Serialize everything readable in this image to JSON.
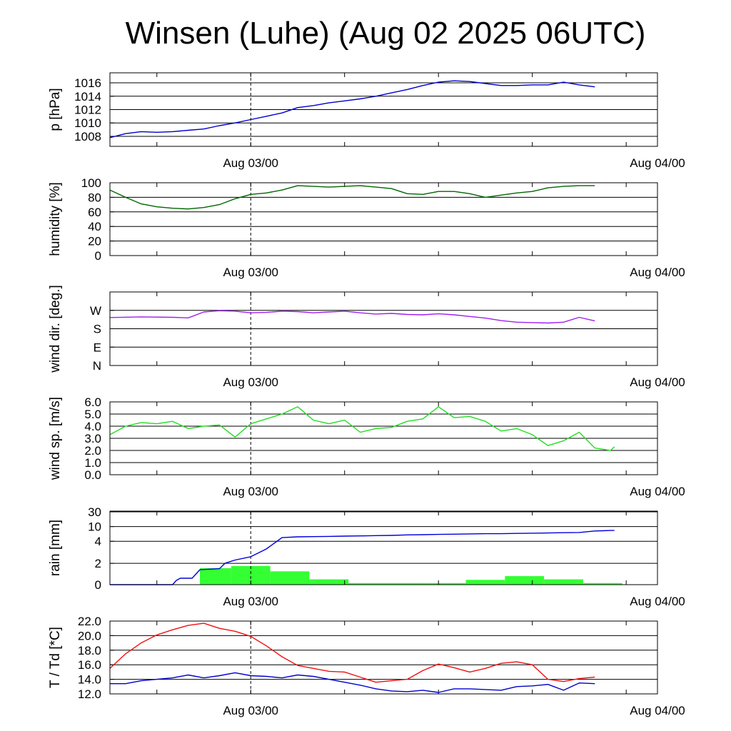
{
  "title": "Winsen (Luhe) (Aug 02 2025 06UTC)",
  "colors": {
    "pressure": "#0000cc",
    "humidity": "#006600",
    "wind_dir": "#a020f0",
    "wind_speed": "#22dd22",
    "rain_total": "#0000dd",
    "rain_bars": "#33ff33",
    "temperature": "#ee1111",
    "dewpoint": "#0000cc"
  },
  "chart_data": [
    {
      "type": "line",
      "id": "pressure",
      "ylabel": "p [hPa]",
      "ylim": [
        1006.5,
        1017.5
      ],
      "yticks": [
        1008,
        1010,
        1012,
        1014,
        1016
      ],
      "ytick_labels": [
        "1008",
        "1010",
        "1012",
        "1014",
        "1016"
      ],
      "xlim_hours": [
        -18,
        52
      ],
      "xtick_labels": [
        "Aug 03/00",
        "Aug 04/00"
      ],
      "series": [
        {
          "values": [
            [
              -18,
              1007.8
            ],
            [
              -16,
              1008.4
            ],
            [
              -14,
              1008.7
            ],
            [
              -12,
              1008.6
            ],
            [
              -10,
              1008.7
            ],
            [
              -8,
              1008.9
            ],
            [
              -6,
              1009.1
            ],
            [
              -4,
              1009.6
            ],
            [
              -2,
              1010.0
            ],
            [
              0,
              1010.5
            ],
            [
              2,
              1011.0
            ],
            [
              4,
              1011.5
            ],
            [
              6,
              1012.3
            ],
            [
              8,
              1012.6
            ],
            [
              10,
              1013.0
            ],
            [
              12,
              1013.3
            ],
            [
              14,
              1013.6
            ],
            [
              16,
              1014.0
            ],
            [
              18,
              1014.5
            ],
            [
              20,
              1015.0
            ],
            [
              22,
              1015.6
            ],
            [
              24,
              1016.1
            ],
            [
              26,
              1016.3
            ],
            [
              28,
              1016.2
            ],
            [
              30,
              1015.9
            ],
            [
              32,
              1015.6
            ],
            [
              34,
              1015.6
            ],
            [
              36,
              1015.7
            ],
            [
              38,
              1015.7
            ],
            [
              40,
              1016.1
            ],
            [
              42,
              1015.7
            ],
            [
              44,
              1015.4
            ]
          ]
        }
      ]
    },
    {
      "type": "line",
      "id": "humidity",
      "ylabel": "humidity [%]",
      "ylim": [
        0,
        100
      ],
      "yticks": [
        0,
        20,
        40,
        60,
        80,
        100
      ],
      "ytick_labels": [
        "0",
        "20",
        "40",
        "60",
        "80",
        "100"
      ],
      "xlim_hours": [
        -18,
        52
      ],
      "xtick_labels": [
        "Aug 03/00",
        "Aug 04/00"
      ],
      "series": [
        {
          "values": [
            [
              -18,
              90
            ],
            [
              -16,
              80
            ],
            [
              -14,
              71
            ],
            [
              -12,
              67
            ],
            [
              -10,
              65
            ],
            [
              -8,
              64
            ],
            [
              -6,
              66
            ],
            [
              -4,
              70
            ],
            [
              -2,
              78
            ],
            [
              0,
              84
            ],
            [
              2,
              86
            ],
            [
              4,
              90
            ],
            [
              6,
              96
            ],
            [
              8,
              95
            ],
            [
              10,
              94
            ],
            [
              12,
              95
            ],
            [
              14,
              96
            ],
            [
              16,
              94
            ],
            [
              18,
              92
            ],
            [
              20,
              85
            ],
            [
              22,
              84
            ],
            [
              24,
              88
            ],
            [
              26,
              88
            ],
            [
              28,
              85
            ],
            [
              30,
              80
            ],
            [
              32,
              83
            ],
            [
              34,
              86
            ],
            [
              36,
              88
            ],
            [
              38,
              93
            ],
            [
              40,
              95
            ],
            [
              42,
              96
            ],
            [
              44,
              96
            ]
          ]
        }
      ]
    },
    {
      "type": "line",
      "id": "wind_dir",
      "ylabel": "wind dir. [deg.]",
      "ylim": [
        0,
        360
      ],
      "yticks": [
        0,
        90,
        180,
        270
      ],
      "ytick_labels": [
        "N",
        "E",
        "S",
        "W"
      ],
      "xlim_hours": [
        -18,
        52
      ],
      "xtick_labels": [
        "Aug 03/00",
        "Aug 04/00"
      ],
      "series": [
        {
          "values": [
            [
              -18,
              235
            ],
            [
              -14,
              238
            ],
            [
              -10,
              236
            ],
            [
              -8,
              233
            ],
            [
              -6,
              262
            ],
            [
              -4,
              268
            ],
            [
              -2,
              266
            ],
            [
              0,
              258
            ],
            [
              2,
              260
            ],
            [
              4,
              266
            ],
            [
              6,
              264
            ],
            [
              8,
              258
            ],
            [
              10,
              262
            ],
            [
              12,
              266
            ],
            [
              14,
              258
            ],
            [
              16,
              252
            ],
            [
              18,
              255
            ],
            [
              20,
              250
            ],
            [
              22,
              248
            ],
            [
              24,
              253
            ],
            [
              26,
              248
            ],
            [
              28,
              240
            ],
            [
              30,
              232
            ],
            [
              32,
              220
            ],
            [
              34,
              212
            ],
            [
              36,
              210
            ],
            [
              38,
              208
            ],
            [
              40,
              212
            ],
            [
              42,
              236
            ],
            [
              44,
              218
            ]
          ]
        }
      ]
    },
    {
      "type": "line",
      "id": "wind_speed",
      "ylabel": "wind sp. [m/s]",
      "ylim": [
        0,
        6.0
      ],
      "yticks": [
        0,
        1,
        2,
        3,
        4,
        5,
        6
      ],
      "ytick_labels": [
        "0.0",
        "1.0",
        "2.0",
        "3.0",
        "4.0",
        "5.0",
        "6.0"
      ],
      "xlim_hours": [
        -18,
        52
      ],
      "xtick_labels": [
        "Aug 03/00",
        "Aug 04/00"
      ],
      "series": [
        {
          "values": [
            [
              -18,
              3.3
            ],
            [
              -16,
              4.0
            ],
            [
              -14,
              4.3
            ],
            [
              -12,
              4.2
            ],
            [
              -10,
              4.4
            ],
            [
              -8,
              3.8
            ],
            [
              -6,
              4.0
            ],
            [
              -4,
              4.1
            ],
            [
              -2,
              3.1
            ],
            [
              0,
              4.2
            ],
            [
              2,
              4.6
            ],
            [
              4,
              5.0
            ],
            [
              6,
              5.6
            ],
            [
              8,
              4.5
            ],
            [
              10,
              4.2
            ],
            [
              12,
              4.5
            ],
            [
              14,
              3.5
            ],
            [
              16,
              3.8
            ],
            [
              18,
              3.9
            ],
            [
              20,
              4.4
            ],
            [
              22,
              4.6
            ],
            [
              24,
              5.6
            ],
            [
              26,
              4.7
            ],
            [
              28,
              4.8
            ],
            [
              30,
              4.4
            ],
            [
              32,
              3.6
            ],
            [
              34,
              3.8
            ],
            [
              36,
              3.3
            ],
            [
              38,
              2.4
            ],
            [
              40,
              2.8
            ],
            [
              42,
              3.5
            ],
            [
              44,
              2.2
            ],
            [
              46,
              2.0
            ],
            [
              46.5,
              2.3
            ]
          ]
        }
      ]
    },
    {
      "type": "bar",
      "id": "rain",
      "ylabel": "rain [mm]",
      "ylim": [
        0,
        30
      ],
      "yticks": [
        0,
        2,
        4,
        10,
        30
      ],
      "ytick_labels": [
        "0",
        "2",
        "4",
        "10",
        "30"
      ],
      "xlim_hours": [
        -18,
        52
      ],
      "xtick_labels": [
        "Aug 03/00",
        "Aug 04/00"
      ],
      "bars": [
        {
          "start": -6.5,
          "end": -2.5,
          "value": 1.55
        },
        {
          "start": -2.5,
          "end": 2.5,
          "value": 1.75
        },
        {
          "start": 2.5,
          "end": 7.5,
          "value": 1.25
        },
        {
          "start": 7.5,
          "end": 12.5,
          "value": 0.5
        },
        {
          "start": 12.5,
          "end": 17.5,
          "value": 0.15
        },
        {
          "start": 17.5,
          "end": 22.5,
          "value": 0.15
        },
        {
          "start": 22.5,
          "end": 27.5,
          "value": 0.15
        },
        {
          "start": 27.5,
          "end": 32.5,
          "value": 0.45
        },
        {
          "start": 32.5,
          "end": 37.5,
          "value": 0.8
        },
        {
          "start": 37.5,
          "end": 42.5,
          "value": 0.5
        },
        {
          "start": 42.5,
          "end": 47.5,
          "value": 0.15
        }
      ],
      "series": [
        {
          "values": [
            [
              -18,
              0
            ],
            [
              -10,
              0
            ],
            [
              -9.5,
              0.4
            ],
            [
              -9,
              0.6
            ],
            [
              -7.5,
              0.6
            ],
            [
              -6.5,
              1.4
            ],
            [
              -4,
              1.5
            ],
            [
              -3.3,
              2.0
            ],
            [
              -2,
              2.3
            ],
            [
              0,
              2.6
            ],
            [
              2,
              3.3
            ],
            [
              4,
              5.5
            ],
            [
              6,
              5.8
            ],
            [
              8,
              5.9
            ],
            [
              10,
              6.0
            ],
            [
              12,
              6.1
            ],
            [
              14,
              6.2
            ],
            [
              16,
              6.3
            ],
            [
              18,
              6.4
            ],
            [
              20,
              6.6
            ],
            [
              22,
              6.7
            ],
            [
              24,
              6.8
            ],
            [
              26,
              6.9
            ],
            [
              28,
              7.0
            ],
            [
              30,
              7.1
            ],
            [
              32,
              7.1
            ],
            [
              34,
              7.2
            ],
            [
              36,
              7.3
            ],
            [
              38,
              7.4
            ],
            [
              40,
              7.5
            ],
            [
              42,
              7.6
            ],
            [
              44,
              8.2
            ],
            [
              45,
              8.3
            ],
            [
              46,
              8.4
            ],
            [
              46.5,
              8.4
            ]
          ]
        }
      ]
    },
    {
      "type": "line",
      "id": "temperature",
      "ylabel": "T / Td [*C]",
      "ylim": [
        12.0,
        22.0
      ],
      "yticks": [
        12,
        14,
        16,
        18,
        20,
        22
      ],
      "ytick_labels": [
        "12.0",
        "14.0",
        "16.0",
        "18.0",
        "20.0",
        "22.0"
      ],
      "xlim_hours": [
        -18,
        52
      ],
      "xtick_labels": [
        "Aug 03/00",
        "Aug 04/00"
      ],
      "series": [
        {
          "values": [
            [
              -18,
              15.5
            ],
            [
              -16,
              17.5
            ],
            [
              -14,
              19.0
            ],
            [
              -12,
              20.1
            ],
            [
              -10,
              20.8
            ],
            [
              -8,
              21.4
            ],
            [
              -6,
              21.7
            ],
            [
              -4,
              21.0
            ],
            [
              -2,
              20.6
            ],
            [
              0,
              19.9
            ],
            [
              2,
              18.6
            ],
            [
              4,
              17.1
            ],
            [
              6,
              15.9
            ],
            [
              8,
              15.5
            ],
            [
              10,
              15.1
            ],
            [
              12,
              15.0
            ],
            [
              14,
              14.3
            ],
            [
              16,
              13.6
            ],
            [
              18,
              13.8
            ],
            [
              20,
              14.0
            ],
            [
              22,
              15.2
            ],
            [
              24,
              16.1
            ],
            [
              26,
              15.6
            ],
            [
              28,
              15.0
            ],
            [
              30,
              15.5
            ],
            [
              32,
              16.2
            ],
            [
              34,
              16.4
            ],
            [
              36,
              16.0
            ],
            [
              38,
              14.0
            ],
            [
              40,
              13.7
            ],
            [
              42,
              14.1
            ],
            [
              44,
              14.3
            ]
          ]
        },
        {
          "values": [
            [
              -18,
              13.4
            ],
            [
              -16,
              13.4
            ],
            [
              -14,
              13.8
            ],
            [
              -12,
              14.0
            ],
            [
              -10,
              14.2
            ],
            [
              -8,
              14.6
            ],
            [
              -6,
              14.2
            ],
            [
              -4,
              14.5
            ],
            [
              -2,
              14.9
            ],
            [
              0,
              14.5
            ],
            [
              2,
              14.4
            ],
            [
              4,
              14.2
            ],
            [
              6,
              14.6
            ],
            [
              8,
              14.4
            ],
            [
              10,
              14.0
            ],
            [
              12,
              13.6
            ],
            [
              14,
              13.2
            ],
            [
              16,
              12.7
            ],
            [
              18,
              12.4
            ],
            [
              20,
              12.3
            ],
            [
              22,
              12.5
            ],
            [
              24,
              12.2
            ],
            [
              26,
              12.7
            ],
            [
              28,
              12.7
            ],
            [
              30,
              12.6
            ],
            [
              32,
              12.5
            ],
            [
              34,
              13.0
            ],
            [
              36,
              13.1
            ],
            [
              38,
              13.3
            ],
            [
              40,
              12.5
            ],
            [
              42,
              13.5
            ],
            [
              44,
              13.4
            ]
          ]
        }
      ]
    }
  ]
}
